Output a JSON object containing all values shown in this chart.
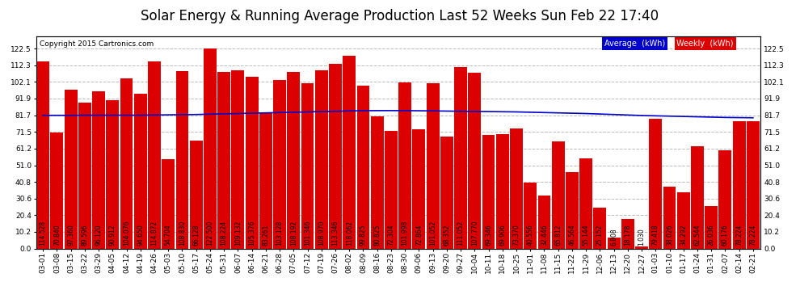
{
  "title": "Solar Energy & Running Average Production Last 52 Weeks Sun Feb 22 17:40",
  "copyright": "Copyright 2015 Cartronics.com",
  "bar_color": "#dd0000",
  "line_color": "#0000cc",
  "background_color": "#ffffff",
  "plot_bg_color": "#ffffff",
  "grid_color": "#bbbbbb",
  "legend_avg_color": "#0000cc",
  "legend_avg_bg": "#0000cc",
  "legend_weekly_color": "#dd0000",
  "legend_weekly_bg": "#dd0000",
  "categories": [
    "03-01",
    "03-08",
    "03-15",
    "03-22",
    "03-29",
    "04-05",
    "04-12",
    "04-19",
    "04-26",
    "05-03",
    "05-10",
    "05-17",
    "05-24",
    "05-31",
    "06-07",
    "06-14",
    "06-21",
    "06-28",
    "07-05",
    "07-12",
    "07-19",
    "07-26",
    "08-02",
    "08-09",
    "08-16",
    "08-23",
    "08-30",
    "09-06",
    "09-13",
    "09-20",
    "09-27",
    "10-04",
    "10-11",
    "10-18",
    "10-25",
    "11-01",
    "11-08",
    "11-15",
    "11-22",
    "11-29",
    "12-06",
    "12-13",
    "12-20",
    "12-27",
    "01-03",
    "01-10",
    "01-17",
    "01-24",
    "01-31",
    "02-07",
    "02-14",
    "02-21"
  ],
  "weekly_values": [
    114.528,
    70.84,
    97.36,
    89.596,
    96.12,
    90.912,
    104.076,
    94.65,
    114.872,
    54.704,
    108.83,
    66.128,
    122.5,
    108.224,
    109.132,
    105.376,
    83.261,
    103.128,
    108.192,
    101.346,
    108.97,
    113.346,
    118.062,
    99.825,
    80.825,
    72.304,
    101.998,
    72.864,
    101.052,
    68.352,
    111.052,
    107.77,
    69.346,
    69.906,
    73.37,
    40.556,
    32.446,
    65.812,
    46.564,
    55.144,
    25.152,
    6.808,
    18.178,
    1.03,
    79.418,
    38.026,
    34.292,
    62.544,
    26.036,
    60.176,
    78.224,
    78.224
  ],
  "avg_values": [
    81.6,
    81.6,
    81.6,
    81.7,
    81.7,
    81.7,
    81.7,
    81.7,
    81.8,
    81.9,
    82.0,
    82.1,
    82.3,
    82.5,
    82.7,
    82.9,
    83.1,
    83.3,
    83.5,
    83.7,
    83.9,
    84.1,
    84.3,
    84.4,
    84.5,
    84.5,
    84.5,
    84.4,
    84.3,
    84.2,
    84.1,
    84.0,
    83.9,
    83.8,
    83.7,
    83.5,
    83.3,
    83.1,
    82.9,
    82.7,
    82.4,
    82.1,
    81.8,
    81.5,
    81.3,
    81.1,
    80.9,
    80.7,
    80.5,
    80.3,
    80.2,
    80.1
  ],
  "bar_labels": [
    "114.528",
    "70.840",
    "97.360",
    "89.596",
    "96.120",
    "90.912",
    "104.076",
    "94.650",
    "114.872",
    "54.704",
    "108.830",
    "66.128",
    "122.500",
    "108.224",
    "109.132",
    "105.376",
    "83.261",
    "103.128",
    "108.192",
    "101.346",
    "108.970",
    "113.346",
    "118.062",
    "99.825",
    "80.825",
    "72.304",
    "101.998",
    "72.864",
    "101.052",
    "68.352",
    "111.052",
    "107.770",
    "69.346",
    "69.906",
    "73.370",
    "40.556",
    "32.446",
    "65.812",
    "46.564",
    "55.144",
    "25.152",
    "6.808",
    "18.178",
    "1.030",
    "79.418",
    "38.026",
    "34.292",
    "62.544",
    "26.036",
    "60.176",
    "78.224",
    "78.224"
  ],
  "ylim": [
    0,
    130
  ],
  "yticks": [
    0.0,
    10.2,
    20.4,
    30.6,
    40.8,
    51.0,
    61.2,
    71.5,
    81.7,
    91.9,
    102.1,
    112.3,
    122.5
  ],
  "title_fontsize": 12,
  "tick_fontsize": 6.5,
  "label_fontsize": 5.5
}
